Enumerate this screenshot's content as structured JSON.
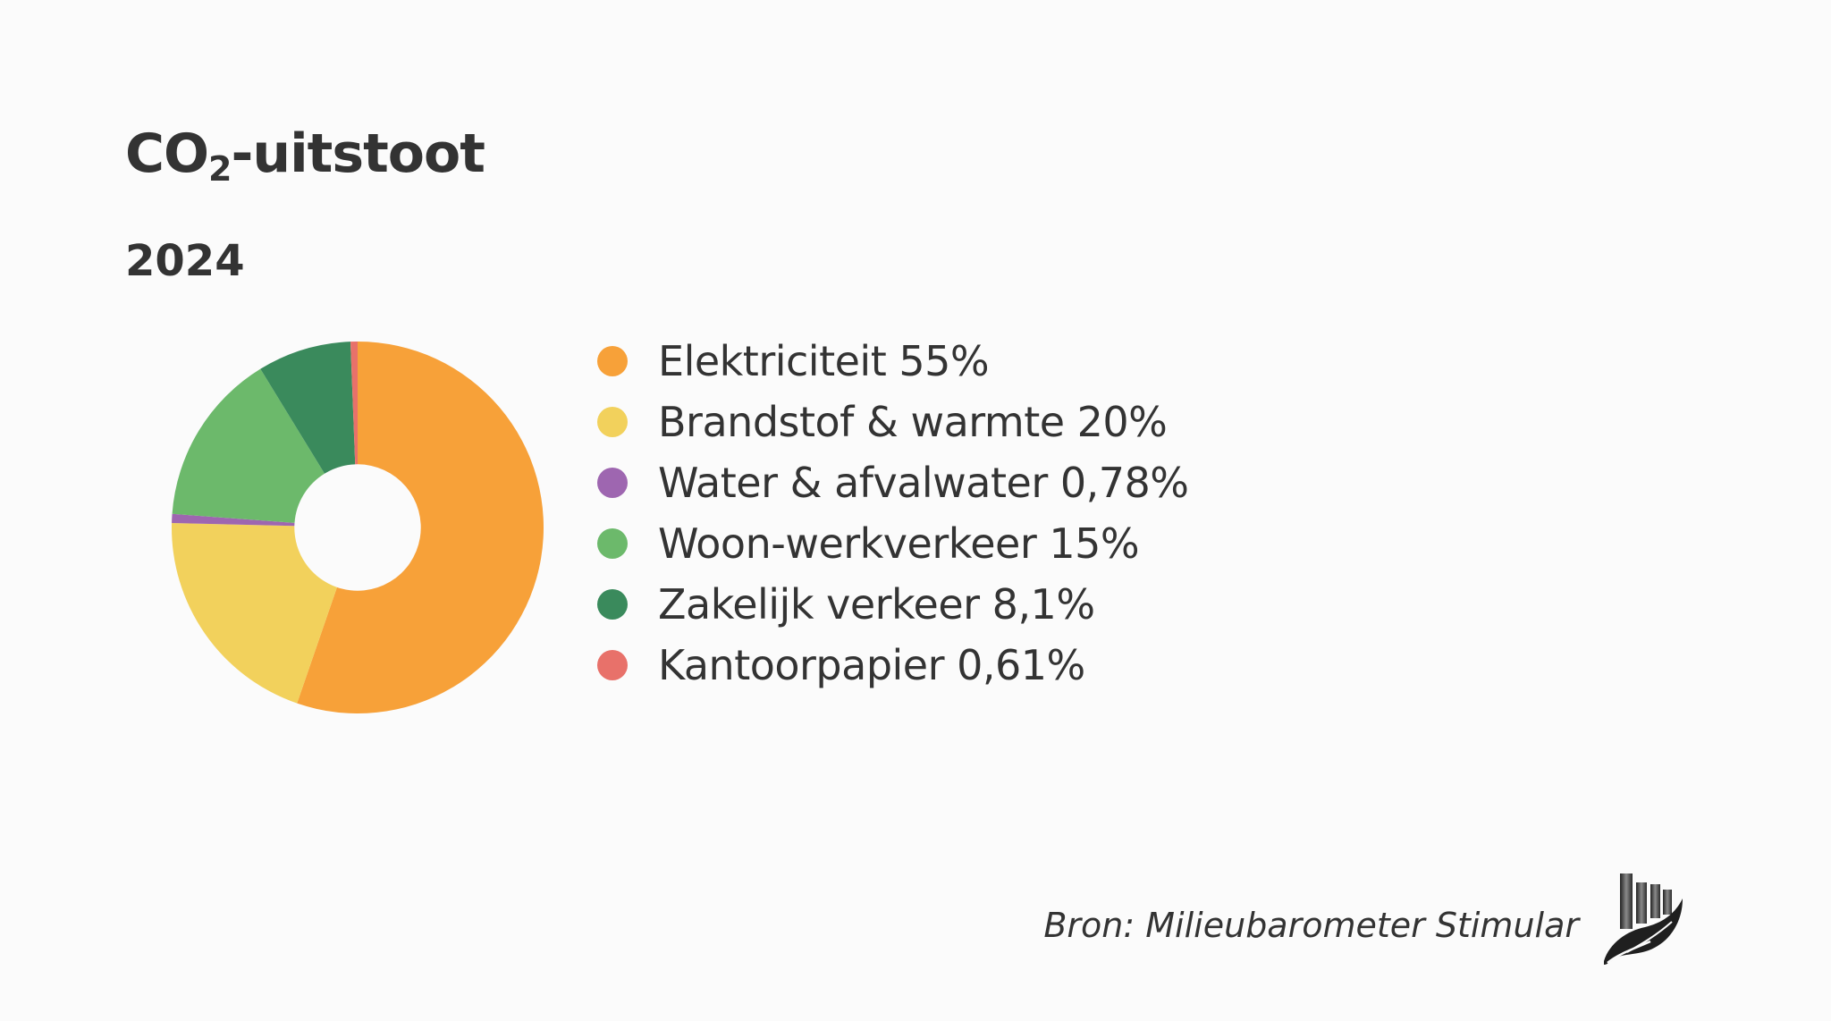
{
  "header": {
    "title_main": "CO",
    "title_sub": "2",
    "title_rest": "-uitstoot",
    "subtitle": "2024"
  },
  "chart_data": {
    "type": "pie",
    "style": "donut",
    "title": "CO₂-uitstoot",
    "subtitle": "2024",
    "legend_position": "right",
    "start_angle_deg": 0,
    "direction": "clockwise",
    "inner_radius_ratio": 0.34,
    "series": [
      {
        "name": "Elektriciteit",
        "value": 55.0,
        "label": "Elektriciteit 55%",
        "color": "#f7a139"
      },
      {
        "name": "Brandstof & warmte",
        "value": 20.0,
        "label": "Brandstof & warmte 20%",
        "color": "#f2d15c"
      },
      {
        "name": "Water & afvalwater",
        "value": 0.78,
        "label": "Water & afvalwater 0,78%",
        "color": "#9e66b0"
      },
      {
        "name": "Woon-werkverkeer",
        "value": 15.0,
        "label": "Woon-werkverkeer 15%",
        "color": "#6cb96b"
      },
      {
        "name": "Zakelijk verkeer",
        "value": 8.1,
        "label": "Zakelijk verkeer 8,1%",
        "color": "#3a8a5c"
      },
      {
        "name": "Kantoorpapier",
        "value": 0.61,
        "label": "Kantoorpapier 0,61%",
        "color": "#e8716a"
      }
    ]
  },
  "footer": {
    "source": "Bron: Milieubarometer Stimular",
    "logo_icon": "stimular-logo-icon"
  },
  "colors": {
    "background": "#fbfbfb",
    "text": "#333333"
  }
}
